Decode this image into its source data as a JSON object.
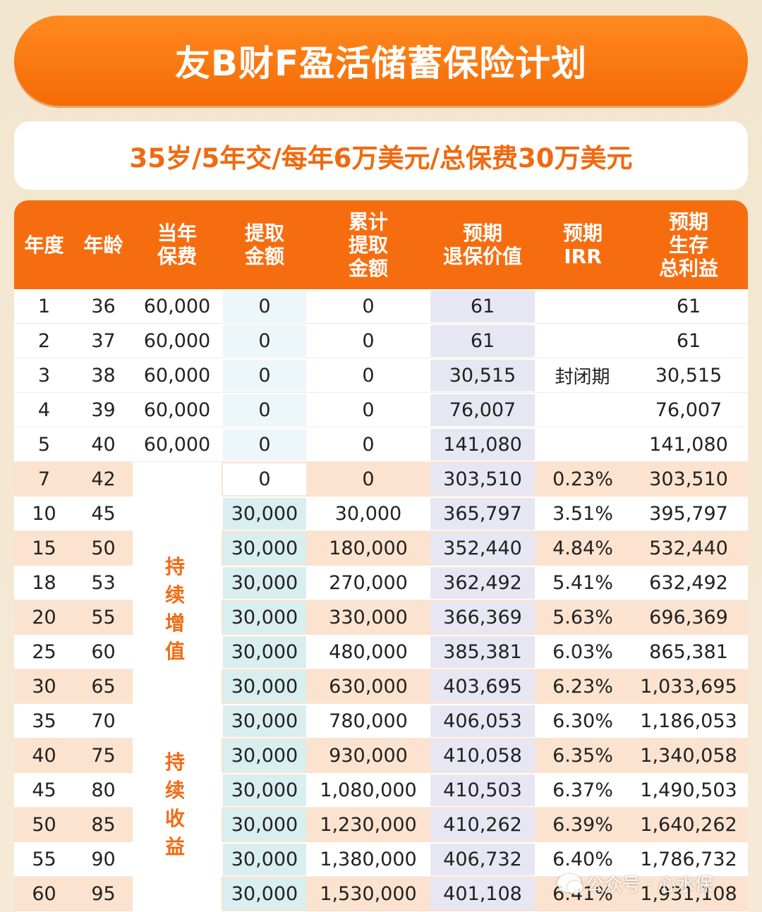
{
  "title": "友B财F盈活储蓄保险计划",
  "subtitle": "35岁/5年交/每年6万美元/总保费30万美元",
  "headers": [
    "年度",
    "年龄",
    "当年\n保费",
    "提取\n金额",
    "累计\n提取\n金额",
    "预期\n退保价值",
    "预期\nIRR",
    "预期\n生存\n总利益"
  ],
  "closed_label": "封闭期",
  "phase_labels": [
    "持\n续\n增\n值",
    "持\n续\n收\n益"
  ],
  "rows_premium": [
    {
      "year": "1",
      "age": "36",
      "premium": "60,000",
      "withdraw": "0",
      "cum": "0",
      "surrender": "61",
      "total": "61"
    },
    {
      "year": "2",
      "age": "37",
      "premium": "60,000",
      "withdraw": "0",
      "cum": "0",
      "surrender": "61",
      "total": "61"
    },
    {
      "year": "3",
      "age": "38",
      "premium": "60,000",
      "withdraw": "0",
      "cum": "0",
      "surrender": "30,515",
      "total": "30,515"
    },
    {
      "year": "4",
      "age": "39",
      "premium": "60,000",
      "withdraw": "0",
      "cum": "0",
      "surrender": "76,007",
      "total": "76,007"
    },
    {
      "year": "5",
      "age": "40",
      "premium": "60,000",
      "withdraw": "0",
      "cum": "0",
      "surrender": "141,080",
      "total": "141,080"
    }
  ],
  "rows_later": [
    {
      "year": "7",
      "age": "42",
      "withdraw": "0",
      "cum": "0",
      "surrender": "303,510",
      "irr": "0.23%",
      "total": "303,510"
    },
    {
      "year": "10",
      "age": "45",
      "withdraw": "30,000",
      "cum": "30,000",
      "surrender": "365,797",
      "irr": "3.51%",
      "total": "395,797"
    },
    {
      "year": "15",
      "age": "50",
      "withdraw": "30,000",
      "cum": "180,000",
      "surrender": "352,440",
      "irr": "4.84%",
      "total": "532,440"
    },
    {
      "year": "18",
      "age": "53",
      "withdraw": "30,000",
      "cum": "270,000",
      "surrender": "362,492",
      "irr": "5.41%",
      "total": "632,492"
    },
    {
      "year": "20",
      "age": "55",
      "withdraw": "30,000",
      "cum": "330,000",
      "surrender": "366,369",
      "irr": "5.63%",
      "total": "696,369"
    },
    {
      "year": "25",
      "age": "60",
      "withdraw": "30,000",
      "cum": "480,000",
      "surrender": "385,381",
      "irr": "6.03%",
      "total": "865,381"
    },
    {
      "year": "30",
      "age": "65",
      "withdraw": "30,000",
      "cum": "630,000",
      "surrender": "403,695",
      "irr": "6.23%",
      "total": "1,033,695"
    },
    {
      "year": "35",
      "age": "70",
      "withdraw": "30,000",
      "cum": "780,000",
      "surrender": "406,053",
      "irr": "6.30%",
      "total": "1,186,053"
    },
    {
      "year": "40",
      "age": "75",
      "withdraw": "30,000",
      "cum": "930,000",
      "surrender": "410,058",
      "irr": "6.35%",
      "total": "1,340,058"
    },
    {
      "year": "45",
      "age": "80",
      "withdraw": "30,000",
      "cum": "1,080,000",
      "surrender": "410,503",
      "irr": "6.37%",
      "total": "1,490,503"
    },
    {
      "year": "50",
      "age": "85",
      "withdraw": "30,000",
      "cum": "1,230,000",
      "surrender": "410,262",
      "irr": "6.39%",
      "total": "1,640,262"
    },
    {
      "year": "55",
      "age": "90",
      "withdraw": "30,000",
      "cum": "1,380,000",
      "surrender": "406,732",
      "irr": "6.40%",
      "total": "1,786,732"
    },
    {
      "year": "60",
      "age": "95",
      "withdraw": "30,000",
      "cum": "1,530,000",
      "surrender": "401,108",
      "irr": "6.41%",
      "total": "1,931,108"
    }
  ],
  "watermark": "公众号 · 心水保",
  "colors": {
    "orange": "#f66d10",
    "peach_row": "#fbe3cf",
    "surrender_col": "#e7e6f3",
    "withdraw_col": "#d9eeee",
    "withdraw_col_light": "#edf6f9"
  }
}
